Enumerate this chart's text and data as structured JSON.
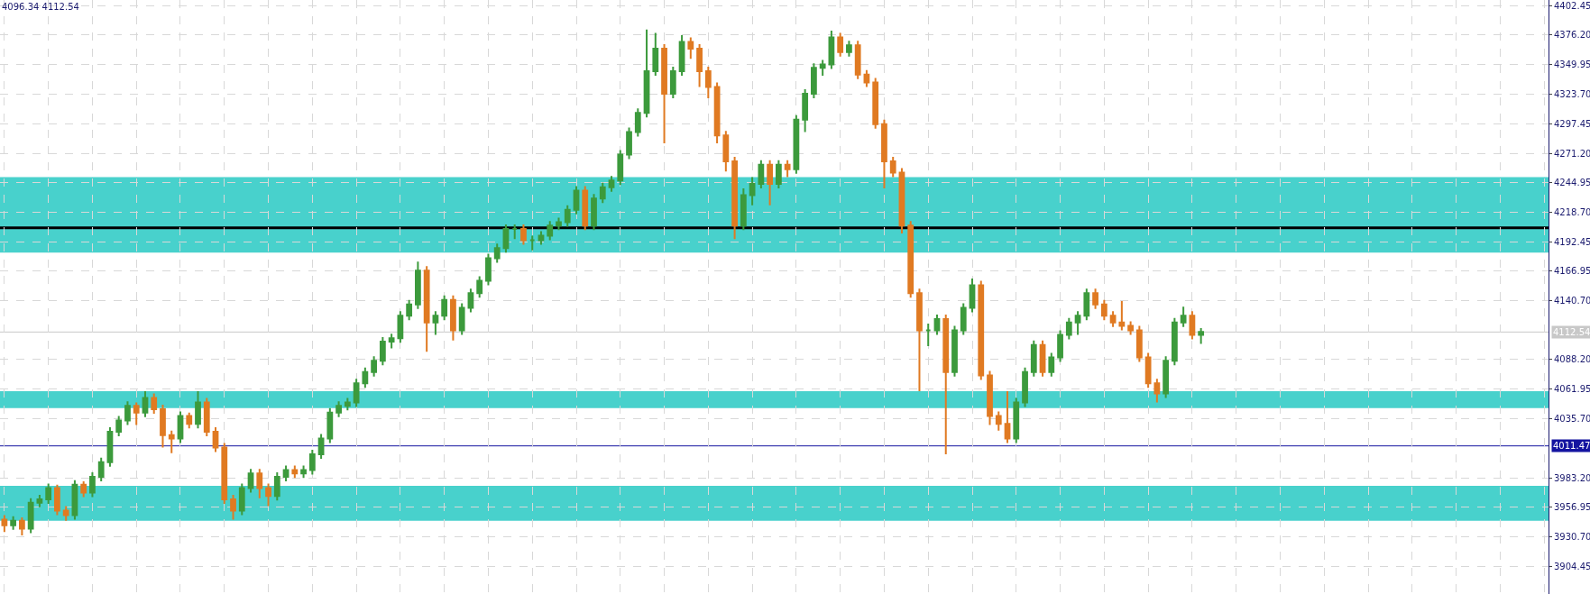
{
  "chart_data": {
    "type": "candlestick",
    "categories": [
      null,
      null,
      null,
      null,
      null,
      null,
      null,
      null,
      null,
      null,
      null,
      null,
      null,
      null,
      null,
      null,
      null,
      null,
      null,
      null,
      null,
      null,
      null,
      null,
      null,
      null,
      null,
      null,
      null,
      null,
      null,
      null,
      null,
      null,
      null,
      null,
      null,
      null,
      null,
      null,
      null,
      null,
      null,
      null,
      null,
      null,
      null,
      null,
      null,
      null,
      null,
      null,
      null,
      null,
      null,
      null,
      null,
      null,
      null,
      null,
      null,
      null,
      null,
      null,
      null,
      null,
      null,
      null,
      null,
      null,
      null,
      null,
      null,
      null,
      null,
      null,
      null,
      null,
      null,
      null,
      null,
      null,
      null,
      null,
      null,
      null,
      null,
      null,
      null,
      null,
      null,
      null,
      null,
      null,
      null,
      null,
      null,
      null,
      null,
      null,
      null,
      null,
      null,
      null,
      null,
      null,
      null,
      null,
      null,
      null,
      null,
      null,
      null,
      null,
      null,
      null,
      null,
      null,
      null,
      null,
      null,
      null,
      null,
      null,
      null,
      null,
      null,
      null,
      null,
      null,
      null,
      null,
      null,
      null,
      null,
      null,
      null,
      null,
      null,
      null,
      null,
      null,
      null,
      null,
      null,
      null,
      null,
      null,
      null,
      null,
      null,
      null,
      null,
      null,
      null,
      null,
      null,
      null,
      null,
      null,
      null,
      null,
      null,
      null,
      null,
      null,
      null,
      null,
      null,
      null,
      null,
      null,
      null,
      null,
      null,
      null
    ],
    "ohlc": [
      [
        3946,
        3950,
        3935,
        3941
      ],
      [
        3941,
        3949,
        3937,
        3945
      ],
      [
        3945,
        3948,
        3932,
        3938
      ],
      [
        3938,
        3965,
        3934,
        3961
      ],
      [
        3961,
        3968,
        3957,
        3964
      ],
      [
        3964,
        3978,
        3960,
        3974
      ],
      [
        3974,
        3977,
        3950,
        3954
      ],
      [
        3954,
        3958,
        3945,
        3950
      ],
      [
        3950,
        3981,
        3946,
        3977
      ],
      [
        3977,
        3980,
        3966,
        3970
      ],
      [
        3970,
        3988,
        3966,
        3984
      ],
      [
        3984,
        4001,
        3980,
        3997
      ],
      [
        3997,
        4028,
        3993,
        4024
      ],
      [
        4024,
        4038,
        4020,
        4034
      ],
      [
        4034,
        4051,
        4030,
        4047
      ],
      [
        4047,
        4050,
        4030,
        4041
      ],
      [
        4041,
        4060,
        4037,
        4054
      ],
      [
        4054,
        4058,
        4040,
        4044
      ],
      [
        4044,
        4048,
        4010,
        4021
      ],
      [
        4021,
        4025,
        4005,
        4018
      ],
      [
        4018,
        4042,
        4014,
        4038
      ],
      [
        4038,
        4041,
        4027,
        4031
      ],
      [
        4031,
        4060,
        4027,
        4050
      ],
      [
        4050,
        4054,
        4020,
        4024
      ],
      [
        4024,
        4028,
        4006,
        4010
      ],
      [
        4010,
        4014,
        3960,
        3964
      ],
      [
        3964,
        3968,
        3946,
        3954
      ],
      [
        3954,
        3978,
        3950,
        3974
      ],
      [
        3974,
        3991,
        3970,
        3987
      ],
      [
        3987,
        3991,
        3965,
        3974
      ],
      [
        3974,
        3978,
        3958,
        3967
      ],
      [
        3967,
        3988,
        3963,
        3984
      ],
      [
        3984,
        3994,
        3980,
        3990
      ],
      [
        3990,
        3994,
        3983,
        3987
      ],
      [
        3987,
        3994,
        3983,
        3990
      ],
      [
        3990,
        4008,
        3986,
        4004
      ],
      [
        4004,
        4022,
        4000,
        4018
      ],
      [
        4018,
        4045,
        4014,
        4041
      ],
      [
        4041,
        4051,
        4037,
        4047
      ],
      [
        4047,
        4054,
        4043,
        4050
      ],
      [
        4050,
        4071,
        4046,
        4067
      ],
      [
        4067,
        4081,
        4063,
        4077
      ],
      [
        4077,
        4091,
        4073,
        4087
      ],
      [
        4087,
        4108,
        4083,
        4104
      ],
      [
        4104,
        4111,
        4098,
        4107
      ],
      [
        4107,
        4131,
        4103,
        4127
      ],
      [
        4127,
        4141,
        4123,
        4137
      ],
      [
        4137,
        4175,
        4133,
        4167
      ],
      [
        4167,
        4171,
        4095,
        4121
      ],
      [
        4121,
        4131,
        4110,
        4127
      ],
      [
        4127,
        4145,
        4123,
        4141
      ],
      [
        4141,
        4145,
        4105,
        4114
      ],
      [
        4114,
        4138,
        4110,
        4134
      ],
      [
        4134,
        4151,
        4130,
        4147
      ],
      [
        4147,
        4162,
        4143,
        4158
      ],
      [
        4158,
        4182,
        4154,
        4178
      ],
      [
        4178,
        4191,
        4174,
        4187
      ],
      [
        4187,
        4208,
        4183,
        4204
      ],
      [
        4204,
        4208,
        4195,
        4204
      ],
      [
        4204,
        4208,
        4190,
        4194
      ],
      [
        4194,
        4198,
        4185,
        4194
      ],
      [
        4194,
        4202,
        4190,
        4198
      ],
      [
        4198,
        4211,
        4194,
        4207
      ],
      [
        4207,
        4214,
        4203,
        4210
      ],
      [
        4210,
        4225,
        4206,
        4221
      ],
      [
        4221,
        4242,
        4217,
        4238
      ],
      [
        4238,
        4242,
        4203,
        4207
      ],
      [
        4207,
        4235,
        4203,
        4231
      ],
      [
        4231,
        4245,
        4227,
        4241
      ],
      [
        4241,
        4251,
        4237,
        4247
      ],
      [
        4247,
        4274,
        4243,
        4270
      ],
      [
        4270,
        4294,
        4266,
        4290
      ],
      [
        4290,
        4311,
        4286,
        4307
      ],
      [
        4307,
        4381,
        4303,
        4344
      ],
      [
        4344,
        4378,
        4340,
        4364
      ],
      [
        4364,
        4368,
        4280,
        4324
      ],
      [
        4324,
        4348,
        4320,
        4344
      ],
      [
        4344,
        4376,
        4340,
        4370
      ],
      [
        4370,
        4374,
        4355,
        4364
      ],
      [
        4364,
        4368,
        4330,
        4344
      ],
      [
        4344,
        4348,
        4320,
        4330
      ],
      [
        4330,
        4334,
        4280,
        4287
      ],
      [
        4287,
        4291,
        4255,
        4264
      ],
      [
        4264,
        4268,
        4195,
        4207
      ],
      [
        4207,
        4240,
        4203,
        4234
      ],
      [
        4234,
        4250,
        4225,
        4244
      ],
      [
        4244,
        4265,
        4240,
        4261
      ],
      [
        4261,
        4265,
        4225,
        4244
      ],
      [
        4244,
        4265,
        4240,
        4261
      ],
      [
        4261,
        4265,
        4250,
        4257
      ],
      [
        4257,
        4305,
        4253,
        4301
      ],
      [
        4301,
        4328,
        4290,
        4324
      ],
      [
        4324,
        4351,
        4320,
        4347
      ],
      [
        4347,
        4354,
        4340,
        4350
      ],
      [
        4350,
        4380,
        4346,
        4374
      ],
      [
        4374,
        4378,
        4357,
        4361
      ],
      [
        4361,
        4371,
        4357,
        4367
      ],
      [
        4367,
        4371,
        4337,
        4341
      ],
      [
        4341,
        4345,
        4330,
        4334
      ],
      [
        4334,
        4338,
        4293,
        4297
      ],
      [
        4297,
        4301,
        4240,
        4264
      ],
      [
        4264,
        4268,
        4250,
        4254
      ],
      [
        4254,
        4258,
        4200,
        4207
      ],
      [
        4207,
        4211,
        4143,
        4147
      ],
      [
        4147,
        4151,
        4060,
        4114
      ],
      [
        4114,
        4120,
        4100,
        4114
      ],
      [
        4114,
        4128,
        4110,
        4124
      ],
      [
        4124,
        4128,
        4004,
        4077
      ],
      [
        4077,
        4118,
        4073,
        4114
      ],
      [
        4114,
        4138,
        4110,
        4134
      ],
      [
        4134,
        4160,
        4130,
        4154
      ],
      [
        4154,
        4158,
        4070,
        4074
      ],
      [
        4074,
        4078,
        4030,
        4038
      ],
      [
        4038,
        4042,
        4025,
        4031
      ],
      [
        4031,
        4060,
        4014,
        4018
      ],
      [
        4018,
        4054,
        4014,
        4050
      ],
      [
        4050,
        4081,
        4046,
        4077
      ],
      [
        4077,
        4105,
        4073,
        4101
      ],
      [
        4101,
        4105,
        4073,
        4077
      ],
      [
        4077,
        4094,
        4073,
        4090
      ],
      [
        4090,
        4114,
        4086,
        4110
      ],
      [
        4110,
        4125,
        4106,
        4121
      ],
      [
        4121,
        4131,
        4110,
        4127
      ],
      [
        4127,
        4151,
        4123,
        4147
      ],
      [
        4147,
        4151,
        4133,
        4137
      ],
      [
        4137,
        4141,
        4123,
        4127
      ],
      [
        4127,
        4131,
        4117,
        4121
      ],
      [
        4121,
        4140,
        4114,
        4118
      ],
      [
        4118,
        4122,
        4110,
        4114
      ],
      [
        4114,
        4118,
        4086,
        4090
      ],
      [
        4090,
        4094,
        4063,
        4067
      ],
      [
        4067,
        4071,
        4050,
        4058
      ],
      [
        4058,
        4091,
        4054,
        4087
      ],
      [
        4087,
        4125,
        4083,
        4121
      ],
      [
        4121,
        4135,
        4117,
        4127
      ],
      [
        4127,
        4131,
        4106,
        4110
      ],
      [
        4110,
        4116,
        4102,
        4112.54
      ],
      null,
      null,
      null,
      null,
      null,
      null,
      null,
      null,
      null,
      null,
      null,
      null,
      null,
      null,
      null,
      null,
      null,
      null,
      null,
      null,
      null,
      null,
      null,
      null,
      null,
      null,
      null,
      null,
      null,
      null,
      null,
      null,
      null,
      null,
      null,
      null,
      null,
      null,
      null
    ],
    "colors": [
      "#e07a22",
      "#3c9a3c",
      "#e07a22",
      "#3c9a3c",
      "#3c9a3c",
      "#3c9a3c",
      "#e07a22",
      "#e07a22",
      "#3c9a3c",
      "#e07a22",
      "#3c9a3c",
      "#3c9a3c",
      "#3c9a3c",
      "#3c9a3c",
      "#3c9a3c",
      "#e07a22",
      "#3c9a3c",
      "#e07a22",
      "#e07a22",
      "#e07a22",
      "#3c9a3c",
      "#e07a22",
      "#3c9a3c",
      "#e07a22",
      "#e07a22",
      "#e07a22",
      "#e07a22",
      "#3c9a3c",
      "#3c9a3c",
      "#e07a22",
      "#e07a22",
      "#3c9a3c",
      "#3c9a3c",
      "#e07a22",
      "#3c9a3c",
      "#3c9a3c",
      "#3c9a3c",
      "#3c9a3c",
      "#3c9a3c",
      "#3c9a3c",
      "#3c9a3c",
      "#3c9a3c",
      "#3c9a3c",
      "#3c9a3c",
      "#3c9a3c",
      "#3c9a3c",
      "#3c9a3c",
      "#3c9a3c",
      "#e07a22",
      "#3c9a3c",
      "#3c9a3c",
      "#e07a22",
      "#3c9a3c",
      "#3c9a3c",
      "#3c9a3c",
      "#3c9a3c",
      "#3c9a3c",
      "#3c9a3c",
      "#3c9a3c",
      "#e07a22",
      "#3c9a3c",
      "#3c9a3c",
      "#3c9a3c",
      "#3c9a3c",
      "#3c9a3c",
      "#3c9a3c",
      "#e07a22",
      "#3c9a3c",
      "#3c9a3c",
      "#3c9a3c",
      "#3c9a3c",
      "#3c9a3c",
      "#3c9a3c",
      "#3c9a3c",
      "#3c9a3c",
      "#e07a22",
      "#3c9a3c",
      "#3c9a3c",
      "#e07a22",
      "#e07a22",
      "#e07a22",
      "#e07a22",
      "#e07a22",
      "#e07a22",
      "#3c9a3c",
      "#3c9a3c",
      "#3c9a3c",
      "#e07a22",
      "#3c9a3c",
      "#e07a22",
      "#3c9a3c",
      "#3c9a3c",
      "#3c9a3c",
      "#3c9a3c",
      "#3c9a3c",
      "#e07a22",
      "#3c9a3c",
      "#e07a22",
      "#e07a22",
      "#e07a22",
      "#e07a22",
      "#e07a22",
      "#e07a22",
      "#e07a22",
      "#e07a22",
      "#3c9a3c",
      "#3c9a3c",
      "#e07a22",
      "#3c9a3c",
      "#3c9a3c",
      "#3c9a3c",
      "#e07a22",
      "#e07a22",
      "#e07a22",
      "#e07a22",
      "#3c9a3c",
      "#3c9a3c",
      "#3c9a3c",
      "#e07a22",
      "#3c9a3c",
      "#3c9a3c",
      "#3c9a3c",
      "#3c9a3c",
      "#3c9a3c",
      "#e07a22",
      "#e07a22",
      "#e07a22",
      "#e07a22",
      "#e07a22",
      "#e07a22",
      "#e07a22",
      "#e07a22",
      "#3c9a3c",
      "#3c9a3c",
      "#3c9a3c",
      "#e07a22",
      "#3c9a3c",
      null,
      null,
      null,
      null,
      null,
      null,
      null,
      null,
      null,
      null,
      null,
      null,
      null,
      null,
      null,
      null,
      null,
      null,
      null,
      null,
      null,
      null,
      null,
      null,
      null,
      null,
      null,
      null,
      null,
      null,
      null,
      null,
      null,
      null,
      null,
      null,
      null,
      null,
      null
    ],
    "ylim": [
      3880,
      4407.25
    ],
    "yticks": [
      3904.45,
      {
        "value": 3930.7,
        "label": "3930.70"
      },
      3956.95,
      {
        "value": 3983.2,
        "label": "3983.20"
      },
      {
        "value": 4035.7,
        "label": "4035.70"
      },
      4061.95,
      {
        "value": 4088.2,
        "label": "4088.20"
      },
      {
        "value": 4140.7,
        "label": "4140.70"
      },
      4166.95,
      4192.45,
      {
        "value": 4218.7,
        "label": "4218.70"
      },
      4244.95,
      {
        "value": 4271.2,
        "label": "4271.20"
      },
      4297.45,
      {
        "value": 4323.7,
        "label": "4323.70"
      },
      4349.95,
      {
        "value": 4376.2,
        "label": "4376.20"
      },
      4402.45
    ],
    "bands": [
      {
        "axis": "y",
        "from": 4183,
        "to": 4250,
        "color": "#48d1cc"
      },
      {
        "axis": "y",
        "from": 4045,
        "to": 4060,
        "color": "#48d1cc"
      },
      {
        "axis": "y",
        "from": 3945,
        "to": 3976,
        "color": "#48d1cc"
      }
    ],
    "ref_lines": [
      {
        "axis": "y",
        "value": 4011.47,
        "label": "4011.47",
        "color": "#1414a0"
      },
      {
        "axis": "y",
        "value": 4112.54,
        "label": "4112.54",
        "color": "#c8c8c8"
      },
      {
        "axis": "y",
        "value": 4205,
        "color": "#000000"
      }
    ],
    "annotations": [
      "4096.34 4112.54"
    ],
    "grid": true
  }
}
